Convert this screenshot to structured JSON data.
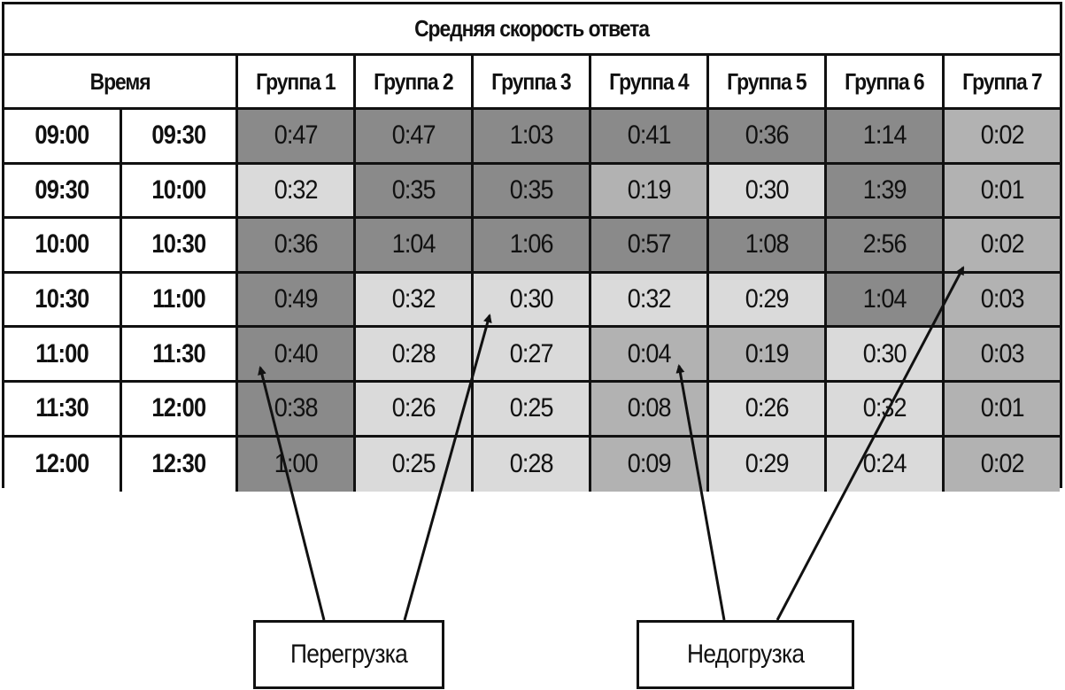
{
  "title": "Средняя скорость ответа",
  "time_header": "Время",
  "groups": [
    "Группа 1",
    "Группа 2",
    "Группа 3",
    "Группа 4",
    "Группа 5",
    "Группа 6",
    "Группа 7"
  ],
  "rows": [
    {
      "from": "09:00",
      "to": "09:30",
      "values": [
        "0:47",
        "0:47",
        "1:03",
        "0:41",
        "0:36",
        "1:14",
        "0:02"
      ],
      "shades": [
        "dark",
        "dark",
        "dark",
        "dark",
        "dark",
        "dark",
        "medium"
      ]
    },
    {
      "from": "09:30",
      "to": "10:00",
      "values": [
        "0:32",
        "0:35",
        "0:35",
        "0:19",
        "0:30",
        "1:39",
        "0:01"
      ],
      "shades": [
        "light",
        "dark",
        "dark",
        "medium",
        "light",
        "dark",
        "medium"
      ]
    },
    {
      "from": "10:00",
      "to": "10:30",
      "values": [
        "0:36",
        "1:04",
        "1:06",
        "0:57",
        "1:08",
        "2:56",
        "0:02"
      ],
      "shades": [
        "dark",
        "dark",
        "dark",
        "dark",
        "dark",
        "dark",
        "medium"
      ]
    },
    {
      "from": "10:30",
      "to": "11:00",
      "values": [
        "0:49",
        "0:32",
        "0:30",
        "0:32",
        "0:29",
        "1:04",
        "0:03"
      ],
      "shades": [
        "dark",
        "light",
        "light",
        "light",
        "light",
        "dark",
        "medium"
      ]
    },
    {
      "from": "11:00",
      "to": "11:30",
      "values": [
        "0:40",
        "0:28",
        "0:27",
        "0:04",
        "0:19",
        "0:30",
        "0:03"
      ],
      "shades": [
        "dark",
        "light",
        "light",
        "medium",
        "medium",
        "light",
        "medium"
      ]
    },
    {
      "from": "11:30",
      "to": "12:00",
      "values": [
        "0:38",
        "0:26",
        "0:25",
        "0:08",
        "0:26",
        "0:32",
        "0:01"
      ],
      "shades": [
        "dark",
        "light",
        "light",
        "medium",
        "light",
        "light",
        "medium"
      ]
    },
    {
      "from": "12:00",
      "to": "12:30",
      "values": [
        "1:00",
        "0:25",
        "0:28",
        "0:09",
        "0:29",
        "0:24",
        "0:02"
      ],
      "shades": [
        "dark",
        "light",
        "light",
        "medium",
        "light",
        "light",
        "medium"
      ]
    }
  ],
  "colors": {
    "dark": "#8a8a8a",
    "medium": "#b2b2b2",
    "light": "#dadada",
    "border": "#111111"
  },
  "labels": {
    "overload": "Перегрузка",
    "underload": "Недогрузка"
  }
}
